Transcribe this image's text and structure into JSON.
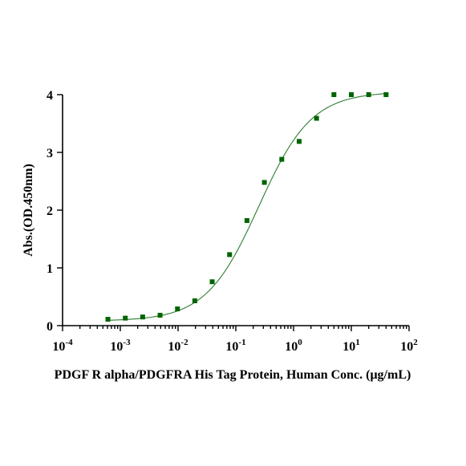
{
  "chart_data": {
    "type": "scatter",
    "xscale": "log",
    "xlim": [
      0.0001,
      100
    ],
    "ylim": [
      0,
      4
    ],
    "xlabel": "PDGF R alpha/PDGFRA His Tag Protein, Human Conc. (μg/mL)",
    "ylabel": "Abs.(OD.450nm)",
    "xticks": [
      {
        "value": 0.0001,
        "base": "10",
        "exp": "-4"
      },
      {
        "value": 0.001,
        "base": "10",
        "exp": "-3"
      },
      {
        "value": 0.01,
        "base": "10",
        "exp": "-2"
      },
      {
        "value": 0.1,
        "base": "10",
        "exp": "-1"
      },
      {
        "value": 1,
        "base": "10",
        "exp": "0"
      },
      {
        "value": 10,
        "base": "10",
        "exp": "1"
      },
      {
        "value": 100,
        "base": "10",
        "exp": "2"
      }
    ],
    "yticks": [
      {
        "value": 0,
        "label": "0"
      },
      {
        "value": 1,
        "label": "1"
      },
      {
        "value": 2,
        "label": "2"
      },
      {
        "value": 3,
        "label": "3"
      },
      {
        "value": 4,
        "label": "4"
      }
    ],
    "series": [
      {
        "marker": "square",
        "color": "#006400",
        "points": [
          {
            "x": 0.00061,
            "y": 0.11
          },
          {
            "x": 0.00122,
            "y": 0.13
          },
          {
            "x": 0.00244,
            "y": 0.15
          },
          {
            "x": 0.00488,
            "y": 0.18
          },
          {
            "x": 0.00977,
            "y": 0.29
          },
          {
            "x": 0.0195,
            "y": 0.43
          },
          {
            "x": 0.039,
            "y": 0.76
          },
          {
            "x": 0.078,
            "y": 1.23
          },
          {
            "x": 0.156,
            "y": 1.82
          },
          {
            "x": 0.3125,
            "y": 2.48
          },
          {
            "x": 0.625,
            "y": 2.88
          },
          {
            "x": 1.25,
            "y": 3.19
          },
          {
            "x": 2.5,
            "y": 3.59
          },
          {
            "x": 5,
            "y": 4.0
          },
          {
            "x": 10,
            "y": 4.0
          },
          {
            "x": 20,
            "y": 4.0
          },
          {
            "x": 40,
            "y": 4.0
          }
        ]
      }
    ],
    "fit": {
      "model": "4PL",
      "color": "#2e7d32",
      "bottom": 0.08,
      "top": 4.05,
      "ec50": 0.25,
      "hill": 0.95,
      "xrange": [
        0.00061,
        40
      ]
    },
    "grid": false,
    "legend": "none"
  }
}
